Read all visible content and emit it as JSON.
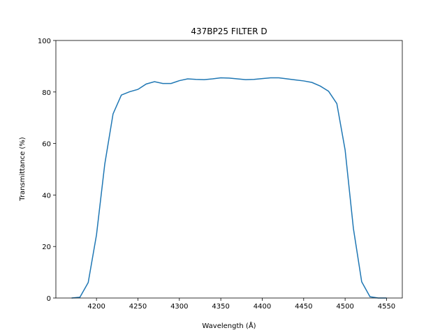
{
  "chart_data": {
    "type": "line",
    "title": "437BP25 FILTER D",
    "x_label": "Wavelength (Å)",
    "y_label": "Transmittance (%)",
    "x": [
      4170,
      4180,
      4190,
      4200,
      4210,
      4220,
      4230,
      4240,
      4250,
      4260,
      4270,
      4280,
      4290,
      4300,
      4310,
      4320,
      4330,
      4340,
      4350,
      4360,
      4370,
      4380,
      4390,
      4400,
      4410,
      4420,
      4430,
      4440,
      4450,
      4460,
      4470,
      4480,
      4490,
      4500,
      4510,
      4520,
      4530,
      4540,
      4550
    ],
    "series": [
      {
        "name": "437BP25 FILTER D",
        "color": "#1f77b4",
        "values": [
          0,
          0.3,
          6,
          24.5,
          52,
          71.5,
          78.8,
          80.1,
          81,
          83.1,
          84,
          83.3,
          83.3,
          84.4,
          85.1,
          84.9,
          84.8,
          85.1,
          85.5,
          85.4,
          85.1,
          84.8,
          84.9,
          85.2,
          85.5,
          85.5,
          85.1,
          84.7,
          84.3,
          83.7,
          82.3,
          80.3,
          75.5,
          57.5,
          27,
          6.3,
          0.5,
          0,
          0
        ]
      }
    ],
    "xlim": [
      4151,
      4569
    ],
    "ylim": [
      0,
      100
    ],
    "xticks": [
      4200,
      4250,
      4300,
      4350,
      4400,
      4450,
      4500,
      4550
    ],
    "yticks": [
      0,
      20,
      40,
      60,
      80,
      100
    ]
  }
}
